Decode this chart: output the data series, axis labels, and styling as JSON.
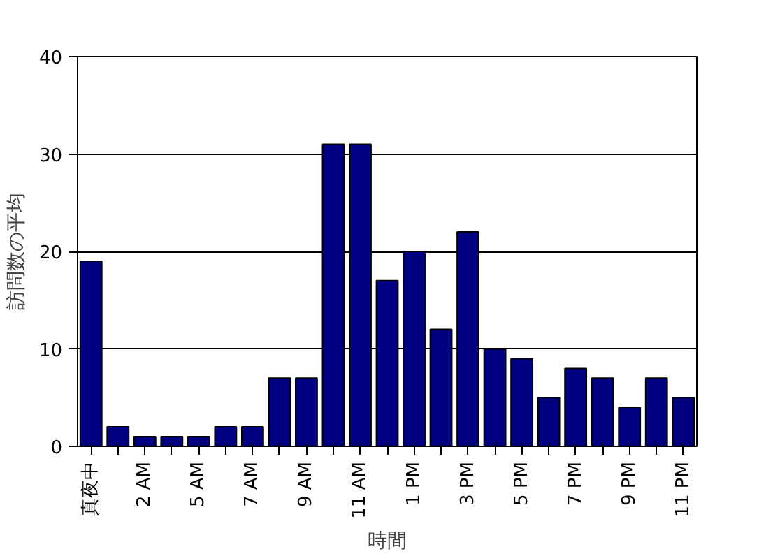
{
  "chart_data": {
    "type": "bar",
    "xlabel": "時間",
    "ylabel": "訪問数の平均",
    "categories": [
      "真夜中",
      null,
      "2 AM",
      null,
      "5 AM",
      null,
      "7 AM",
      null,
      "9 AM",
      null,
      "11 AM",
      null,
      "1 PM",
      null,
      "3 PM",
      null,
      "5 PM",
      null,
      "7 PM",
      null,
      "9 PM",
      null,
      "11 PM"
    ],
    "values": [
      19,
      2,
      1,
      1,
      1,
      2,
      2,
      7,
      7,
      31,
      31,
      17,
      20,
      12,
      22,
      10,
      9,
      5,
      8,
      7,
      4,
      7,
      5
    ],
    "color": "#000080",
    "ylim": [
      0,
      40
    ],
    "yticks": [
      0,
      10,
      20,
      30,
      40
    ],
    "grid": "y"
  }
}
